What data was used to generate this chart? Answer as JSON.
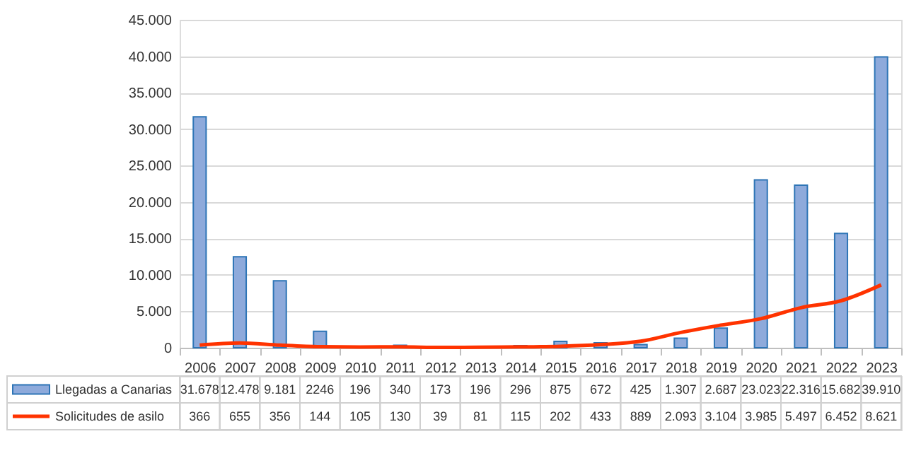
{
  "chart_data": {
    "type": "bar",
    "categories": [
      "2006",
      "2007",
      "2008",
      "2009",
      "2010",
      "2011",
      "2012",
      "2013",
      "2014",
      "2015",
      "2016",
      "2017",
      "2018",
      "2019",
      "2020",
      "2021",
      "2022",
      "2023"
    ],
    "series": [
      {
        "name": "Llegadas a Canarias",
        "type": "bar",
        "color": "#8eaadb",
        "values": [
          31678,
          12478,
          9181,
          2246,
          196,
          340,
          173,
          196,
          296,
          875,
          672,
          425,
          1307,
          2687,
          23023,
          22316,
          15682,
          39910
        ],
        "value_labels": [
          "31.678",
          "12.478",
          "9.181",
          "2246",
          "196",
          "340",
          "173",
          "196",
          "296",
          "875",
          "672",
          "425",
          "1.307",
          "2.687",
          "23.023",
          "22.316",
          "15.682",
          "39.910"
        ]
      },
      {
        "name": "Solicitudes de asilo",
        "type": "line",
        "color": "#ff3300",
        "values": [
          366,
          655,
          356,
          144,
          105,
          130,
          39,
          81,
          115,
          202,
          433,
          889,
          2093,
          3104,
          3985,
          5497,
          6452,
          8621
        ],
        "value_labels": [
          "366",
          "655",
          "356",
          "144",
          "105",
          "130",
          "39",
          "81",
          "115",
          "202",
          "433",
          "889",
          "2.093",
          "3.104",
          "3.985",
          "5.497",
          "6.452",
          "8.621"
        ]
      }
    ],
    "ylim": [
      0,
      45000
    ],
    "yticks": [
      {
        "value": 0,
        "label": "0"
      },
      {
        "value": 5000,
        "label": "5.000"
      },
      {
        "value": 10000,
        "label": "10.000"
      },
      {
        "value": 15000,
        "label": "15.000"
      },
      {
        "value": 20000,
        "label": "20.000"
      },
      {
        "value": 25000,
        "label": "25.000"
      },
      {
        "value": 30000,
        "label": "30.000"
      },
      {
        "value": 35000,
        "label": "35.000"
      },
      {
        "value": 40000,
        "label": "40.000"
      },
      {
        "value": 45000,
        "label": "45.000"
      }
    ],
    "grid": "y",
    "legend": "bottom"
  }
}
